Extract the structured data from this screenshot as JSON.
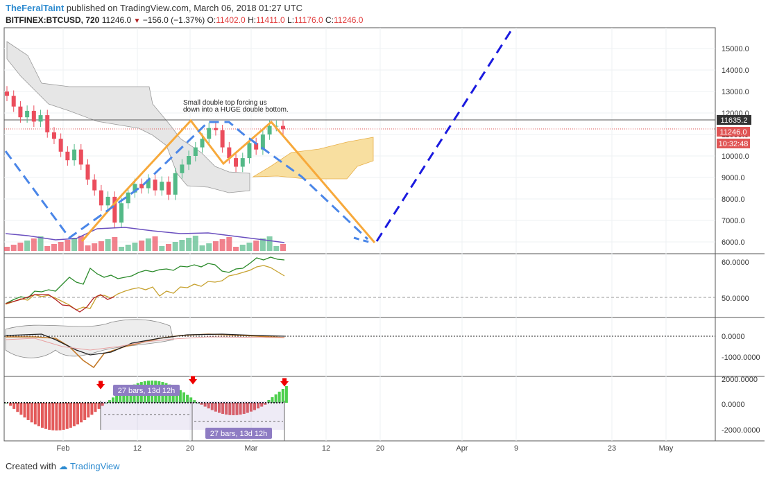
{
  "header": {
    "author": "TheFeralTaint",
    "published": "published on TradingView.com, March 06, 2018 01:27 UTC",
    "symbol": "BITFINEX:BTCUSD, 720",
    "last": "11246.0",
    "change": "−156.0 (−1.37%)",
    "o_label": "O:",
    "o": "11402.0",
    "h_label": "H:",
    "h": "11411.0",
    "l_label": "L:",
    "l": "11176.0",
    "c_label": "C:",
    "c": "11246.0"
  },
  "footer": {
    "created_with": "Created with",
    "brand": "TradingView"
  },
  "colors": {
    "bull": "#53b987",
    "bear": "#eb4d5c",
    "projection": "#4a86e8",
    "dblue": "#1a1adf",
    "orange": "#f7a93b",
    "cloud": "#f6d98a"
  },
  "annotation": {
    "line1": "Small double top forcing us",
    "line2": "down into a HUGE double bottom."
  },
  "price_badges": {
    "level": "11635.2",
    "current": "11246.0",
    "countdown": "10:32:48"
  },
  "measure_labels": {
    "a": "27 bars, 13d 12h",
    "b": "27 bars, 13d 12h"
  },
  "chart_data": {
    "type": "candlestick",
    "title": "",
    "price_axis": {
      "ticks": [
        "15000.0",
        "14000.0",
        "13000.0",
        "12000.0",
        "11000.0",
        "10000.0",
        "9000.0",
        "8000.0",
        "7000.0",
        "6000.0"
      ],
      "range": [
        5500,
        15800
      ]
    },
    "rsi_axis": {
      "ticks": [
        "60.0000",
        "50.0000"
      ]
    },
    "macd_axis": {
      "ticks": [
        "0.0000",
        "-1000.0000"
      ]
    },
    "hist_axis": {
      "ticks": [
        "2000.0000",
        "0.0000",
        "-2000.0000"
      ]
    },
    "x_ticks": [
      "Feb",
      "12",
      "20",
      "Mar",
      "12",
      "20",
      "Apr",
      "9",
      "23",
      "May"
    ],
    "candles_close": [
      12800,
      12300,
      11800,
      12100,
      11600,
      11900,
      11100,
      10800,
      10200,
      9800,
      10300,
      9600,
      8900,
      8400,
      7700,
      8100,
      6900,
      7800,
      8300,
      8700,
      8500,
      8900,
      8400,
      8800,
      8200,
      9200,
      9600,
      10000,
      10400,
      10800,
      11300,
      11200,
      10400,
      9900,
      9500,
      9900,
      10600,
      10300,
      11000,
      11400,
      11400,
      11246
    ]
  }
}
